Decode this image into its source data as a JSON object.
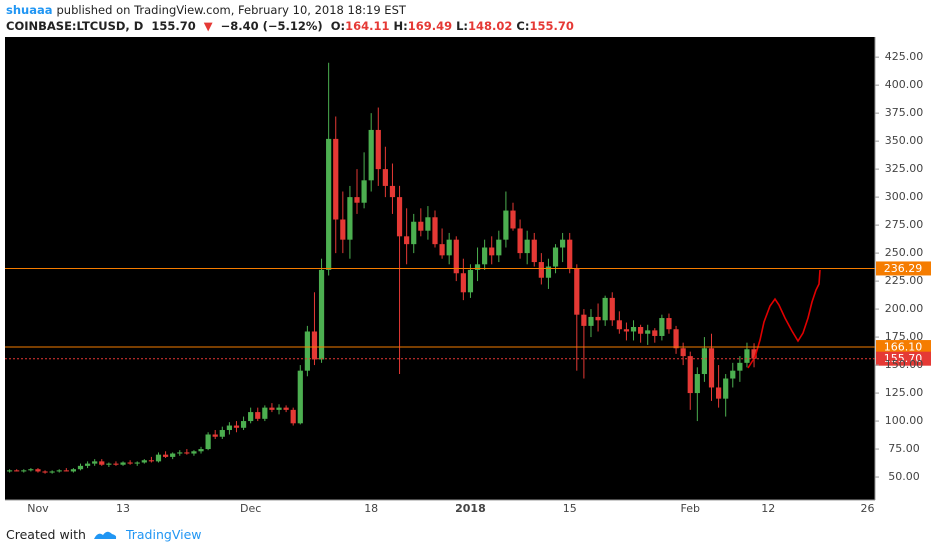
{
  "header": {
    "author": "shuaaa",
    "published": "published on TradingView.com, February 10, 2018 18:19 EST",
    "symbol": "COINBASE:LTCUSD, D",
    "last": "155.70",
    "direction": "▼",
    "change": "−8.40 (−5.12%)",
    "ohlc": [
      {
        "key": "O:",
        "value": "164.11"
      },
      {
        "key": "H:",
        "value": "169.49"
      },
      {
        "key": "L:",
        "value": "148.02"
      },
      {
        "key": "C:",
        "value": "155.70"
      }
    ]
  },
  "chart_data": {
    "type": "candlestick",
    "categories": [
      null,
      null,
      null,
      null,
      "Nov",
      null,
      null,
      null,
      null,
      null,
      null,
      null,
      null,
      null,
      null,
      null,
      "13",
      null,
      null,
      null,
      null,
      null,
      null,
      null,
      null,
      null,
      null,
      null,
      null,
      null,
      null,
      null,
      null,
      null,
      "Dec",
      null,
      null,
      null,
      null,
      null,
      null,
      null,
      null,
      null,
      null,
      null,
      null,
      null,
      null,
      null,
      null,
      "18",
      null,
      null,
      null,
      null,
      null,
      null,
      null,
      null,
      null,
      null,
      null,
      null,
      null,
      "2018",
      null,
      null,
      null,
      null,
      null,
      null,
      null,
      null,
      null,
      null,
      null,
      null,
      null,
      "15",
      null,
      null,
      null,
      null,
      null,
      null,
      null,
      null,
      null,
      null,
      null,
      null,
      null,
      null,
      null,
      null,
      "Feb",
      null,
      null,
      null,
      null,
      null,
      null,
      null,
      null,
      null,
      null,
      "12",
      null,
      null,
      null,
      null,
      null,
      null,
      null,
      null,
      null,
      null,
      null,
      null,
      null,
      "26"
    ],
    "open": [
      55,
      56,
      55,
      56,
      57,
      55,
      54,
      55,
      56,
      55,
      57,
      60,
      62,
      64,
      61,
      62,
      61,
      63,
      62,
      63,
      65,
      64,
      70,
      68,
      71,
      72,
      71,
      73,
      75,
      88,
      86,
      92,
      96,
      94,
      100,
      108,
      102,
      112,
      110,
      112,
      110,
      98,
      145,
      180,
      155,
      235,
      352,
      280,
      262,
      300,
      295,
      315,
      360,
      325,
      310,
      300,
      265,
      258,
      278,
      270,
      282,
      258,
      248,
      262,
      232,
      215,
      235,
      240,
      255,
      248,
      262,
      288,
      272,
      250,
      262,
      242,
      228,
      238,
      255,
      262,
      236,
      195,
      185,
      193,
      190,
      210,
      190,
      182,
      180,
      184,
      178,
      181,
      176,
      192,
      182,
      165,
      158,
      125,
      142,
      165,
      130,
      120,
      138,
      145,
      152,
      164.11,
      null,
      null,
      null,
      null,
      null,
      null,
      null,
      null,
      null,
      null,
      null,
      null,
      null,
      null,
      null,
      null
    ],
    "high": [
      57,
      57,
      57,
      58,
      58,
      56,
      56,
      57,
      58,
      58,
      62,
      64,
      66,
      66,
      63,
      64,
      64,
      65,
      64,
      66,
      68,
      72,
      73,
      72,
      74,
      75,
      74,
      77,
      90,
      92,
      95,
      99,
      100,
      104,
      112,
      112,
      114,
      116,
      115,
      114,
      112,
      150,
      185,
      215,
      245,
      420,
      372,
      305,
      310,
      325,
      340,
      375,
      380,
      345,
      330,
      310,
      290,
      285,
      290,
      292,
      288,
      272,
      268,
      265,
      245,
      240,
      255,
      262,
      265,
      270,
      305,
      295,
      280,
      270,
      268,
      250,
      245,
      258,
      268,
      268,
      240,
      200,
      200,
      205,
      212,
      215,
      198,
      188,
      190,
      186,
      186,
      183,
      195,
      196,
      185,
      170,
      162,
      148,
      175,
      178,
      150,
      142,
      152,
      158,
      170,
      169.49,
      null,
      null,
      null,
      null,
      null,
      null,
      null,
      null,
      null,
      null,
      null,
      null,
      null,
      null,
      null,
      null
    ],
    "low": [
      54,
      55,
      54,
      55,
      54,
      53,
      53,
      54,
      55,
      54,
      56,
      58,
      60,
      60,
      59,
      60,
      60,
      61,
      60,
      62,
      63,
      63,
      67,
      66,
      69,
      70,
      69,
      71,
      74,
      84,
      84,
      88,
      90,
      92,
      98,
      100,
      100,
      108,
      106,
      108,
      96,
      97,
      140,
      150,
      152,
      230,
      250,
      250,
      245,
      285,
      290,
      305,
      310,
      300,
      285,
      142,
      240,
      250,
      265,
      262,
      255,
      245,
      240,
      225,
      208,
      210,
      225,
      235,
      240,
      242,
      255,
      270,
      245,
      240,
      238,
      222,
      218,
      232,
      242,
      232,
      145,
      138,
      175,
      180,
      185,
      185,
      178,
      172,
      172,
      170,
      168,
      170,
      172,
      178,
      160,
      150,
      110,
      100,
      135,
      118,
      112,
      104,
      130,
      135,
      148,
      148.02,
      null,
      null,
      null,
      null,
      null,
      null,
      null,
      null,
      null,
      null,
      null,
      null,
      null,
      null,
      null,
      null
    ],
    "close": [
      56,
      55,
      56,
      57,
      55,
      54,
      55,
      56,
      55,
      57,
      60,
      62,
      64,
      61,
      62,
      61,
      63,
      62,
      63,
      65,
      64,
      70,
      68,
      71,
      72,
      71,
      73,
      75,
      88,
      86,
      92,
      96,
      94,
      100,
      108,
      102,
      112,
      110,
      112,
      110,
      98,
      145,
      180,
      155,
      235,
      352,
      280,
      262,
      300,
      295,
      315,
      360,
      325,
      310,
      300,
      265,
      258,
      278,
      270,
      282,
      258,
      248,
      262,
      232,
      215,
      235,
      240,
      255,
      248,
      262,
      288,
      272,
      250,
      262,
      242,
      228,
      238,
      255,
      262,
      236,
      195,
      185,
      193,
      190,
      210,
      190,
      182,
      180,
      184,
      178,
      181,
      176,
      192,
      182,
      165,
      158,
      125,
      142,
      165,
      130,
      120,
      138,
      145,
      152,
      164.11,
      155.7,
      null,
      null,
      null,
      null,
      null,
      null,
      null,
      null,
      null,
      null,
      null,
      null,
      null,
      null,
      null,
      null
    ],
    "up_color": "#4caf50",
    "down_color": "#e53935",
    "ylim": [
      29.5,
      443
    ],
    "yticks": [
      {
        "value": 50,
        "label": "50.00"
      },
      {
        "value": 75,
        "label": "75.00"
      },
      {
        "value": 100,
        "label": "100.00"
      },
      {
        "value": 125,
        "label": "125.00"
      },
      {
        "value": 150,
        "label": "150.00"
      },
      {
        "value": 175,
        "label": "175.00"
      },
      {
        "value": 200,
        "label": "200.00"
      },
      {
        "value": 225,
        "label": "225.00"
      },
      {
        "value": 250,
        "label": "250.00"
      },
      {
        "value": 275,
        "label": "275.00"
      },
      {
        "value": 300,
        "label": "300.00"
      },
      {
        "value": 325,
        "label": "325.00"
      },
      {
        "value": 350,
        "label": "350.00"
      },
      {
        "value": 375,
        "label": "375.00"
      },
      {
        "value": 400,
        "label": "400.00"
      },
      {
        "value": 425,
        "label": "425.00"
      }
    ],
    "grid": false,
    "price_lines": [
      {
        "value": 236.29,
        "color": "#f57c00",
        "style": "solid"
      },
      {
        "value": 166.1,
        "label": "166.10",
        "color": "#f57c00",
        "style": "solid"
      },
      {
        "value": 155.7,
        "label": "155.70",
        "color": "#e53935",
        "style": "dotted"
      }
    ]
  },
  "footer": {
    "created": "Created with",
    "brand": "TradingView"
  }
}
